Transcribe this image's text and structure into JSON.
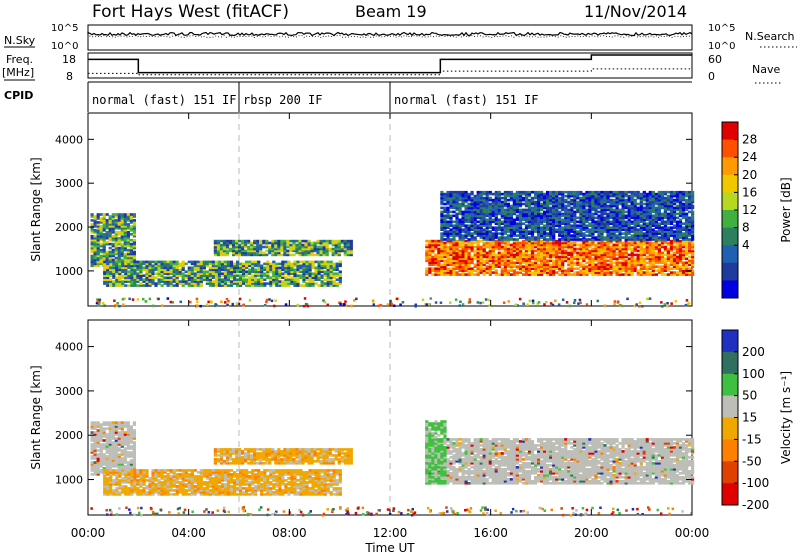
{
  "header": {
    "radar": "Fort Hays West (fitACF)",
    "beam": "Beam 19",
    "date": "11/Nov/2014"
  },
  "noise_panel": {
    "left_label": "N.Sky",
    "right_label": "N.Search",
    "left_ticks": [
      "10^5",
      "10^0"
    ],
    "right_ticks": [
      "10^5",
      "10^0"
    ]
  },
  "freq_panel": {
    "left_label": "Freq.",
    "left_unit": "[MHz]",
    "right_label": "Nave",
    "left_ticks": [
      "18",
      "8"
    ],
    "right_ticks": [
      "60",
      "0"
    ],
    "freq_steps": [
      {
        "t": 0,
        "v": 16
      },
      {
        "t": 2,
        "v": 10
      },
      {
        "t": 14,
        "v": 16
      },
      {
        "t": 20,
        "v": 18
      }
    ],
    "nave_steps": [
      {
        "t": 0,
        "v": 10
      },
      {
        "t": 2,
        "v": 6
      },
      {
        "t": 14,
        "v": 16
      },
      {
        "t": 20,
        "v": 22
      }
    ]
  },
  "cpid": {
    "label": "CPID",
    "segments": [
      {
        "start_hr": 0,
        "text": "normal (fast) 151 IF"
      },
      {
        "start_hr": 6,
        "text": "rbsp 200 IF"
      },
      {
        "start_hr": 12,
        "text": "normal (fast) 151 IF"
      }
    ]
  },
  "time_axis": {
    "label": "Time UT",
    "ticks": [
      "00:00",
      "04:00",
      "08:00",
      "12:00",
      "16:00",
      "20:00",
      "00:00"
    ],
    "tick_hours": [
      0,
      4,
      8,
      12,
      16,
      20,
      24
    ]
  },
  "chart_data": [
    {
      "type": "heatmap",
      "ylabel": "Slant Range [km]",
      "y_ticks": [
        1000,
        2000,
        3000,
        4000
      ],
      "ylim": [
        200,
        4600
      ],
      "xlim_hours": [
        0,
        24
      ],
      "colorbar_label": "Power [dB]",
      "colorbar_ticks": [
        "28",
        "24",
        "20",
        "16",
        "12",
        "8",
        "4"
      ],
      "colorbar_colors": [
        "#e00000",
        "#ff5000",
        "#ff9a00",
        "#f0c800",
        "#b8d820",
        "#40b040",
        "#2c8060",
        "#2060b0",
        "#1e3ca0",
        "#0000e0"
      ],
      "echo_regions": [
        {
          "t0": 0.1,
          "t1": 1.9,
          "r0": 1100,
          "r1": 2300,
          "level": "mid"
        },
        {
          "t0": 0.6,
          "t1": 10.0,
          "r0": 650,
          "r1": 1200,
          "level": "mid"
        },
        {
          "t0": 5.0,
          "t1": 10.5,
          "r0": 1350,
          "r1": 1700,
          "level": "mid"
        },
        {
          "t0": 13.4,
          "t1": 24.0,
          "r0": 900,
          "r1": 1700,
          "level": "high"
        },
        {
          "t0": 14.0,
          "t1": 24.0,
          "r0": 1700,
          "r1": 2800,
          "level": "low"
        }
      ]
    },
    {
      "type": "heatmap",
      "ylabel": "Slant Range [km]",
      "y_ticks": [
        1000,
        2000,
        3000,
        4000
      ],
      "ylim": [
        200,
        4600
      ],
      "xlim_hours": [
        0,
        24
      ],
      "colorbar_label": "Velocity [m s⁻¹]",
      "colorbar_ticks": [
        "200",
        "100",
        "50",
        "15",
        "-15",
        "-50",
        "-100",
        "-200"
      ],
      "colorbar_colors": [
        "#2030c0",
        "#307060",
        "#40c040",
        "#bebeb8",
        "#f0a800",
        "#ff8000",
        "#e04000",
        "#e00000"
      ],
      "echo_regions": [
        {
          "t0": 0.1,
          "t1": 1.9,
          "r0": 1100,
          "r1": 2300,
          "level": "gray"
        },
        {
          "t0": 0.6,
          "t1": 10.0,
          "r0": 650,
          "r1": 1200,
          "level": "orange"
        },
        {
          "t0": 5.0,
          "t1": 10.5,
          "r0": 1350,
          "r1": 1700,
          "level": "orange"
        },
        {
          "t0": 13.4,
          "t1": 24.0,
          "r0": 900,
          "r1": 1900,
          "level": "gray"
        },
        {
          "t0": 13.4,
          "t1": 14.2,
          "r0": 900,
          "r1": 2300,
          "level": "green"
        }
      ]
    }
  ]
}
